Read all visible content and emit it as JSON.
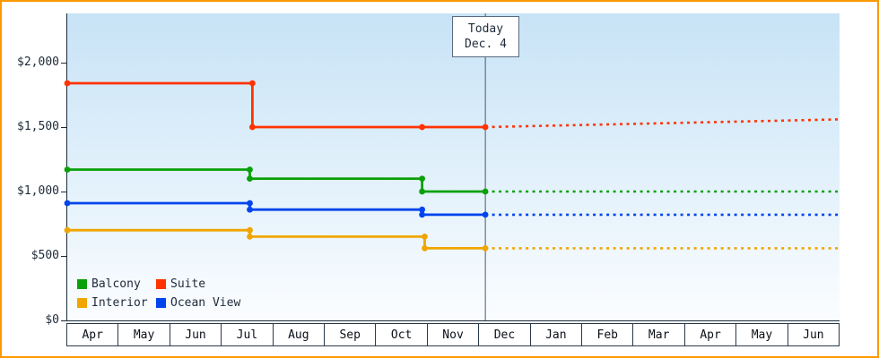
{
  "chart_data": {
    "type": "line",
    "title": "",
    "x_axis": {
      "labels": [
        "Apr",
        "May",
        "Jun",
        "Jul",
        "Aug",
        "Sep",
        "Oct",
        "Nov",
        "Dec",
        "Jan",
        "Feb",
        "Mar",
        "Apr",
        "May",
        "Jun"
      ]
    },
    "y_axis": {
      "min": 0,
      "max_visible": 2380,
      "tick_step": 500,
      "ticks": [
        {
          "value": 2000,
          "label": "$2,000"
        },
        {
          "value": 1500,
          "label": "$1,500"
        },
        {
          "value": 1000,
          "label": "$1,000"
        },
        {
          "value": 500,
          "label": "$500"
        },
        {
          "value": 0,
          "label": "$0"
        }
      ]
    },
    "today_marker": {
      "line1": "Today",
      "line2": "Dec. 4",
      "x": 8.13
    },
    "series": [
      {
        "name": "Suite",
        "color": "#ff3300",
        "history": [
          [
            0,
            1840
          ],
          [
            3.6,
            1840
          ],
          [
            3.6,
            1500
          ],
          [
            6.9,
            1500
          ],
          [
            8.13,
            1500
          ]
        ],
        "forecast": [
          [
            8.13,
            1500
          ],
          [
            15,
            1560
          ]
        ]
      },
      {
        "name": "Balcony",
        "color": "#0aa00a",
        "history": [
          [
            0,
            1170
          ],
          [
            3.55,
            1170
          ],
          [
            3.55,
            1100
          ],
          [
            6.9,
            1100
          ],
          [
            6.9,
            1000
          ],
          [
            8.13,
            1000
          ]
        ],
        "forecast": [
          [
            8.13,
            1000
          ],
          [
            15,
            1000
          ]
        ]
      },
      {
        "name": "Ocean View",
        "color": "#0044ee",
        "history": [
          [
            0,
            910
          ],
          [
            3.55,
            910
          ],
          [
            3.55,
            860
          ],
          [
            6.9,
            860
          ],
          [
            6.9,
            820
          ],
          [
            8.13,
            820
          ]
        ],
        "forecast": [
          [
            8.13,
            820
          ],
          [
            15,
            820
          ]
        ]
      },
      {
        "name": "Interior",
        "color": "#f0a500",
        "history": [
          [
            0,
            700
          ],
          [
            3.55,
            700
          ],
          [
            3.55,
            650
          ],
          [
            6.95,
            650
          ],
          [
            6.95,
            560
          ],
          [
            8.13,
            560
          ]
        ],
        "forecast": [
          [
            8.13,
            560
          ],
          [
            15,
            560
          ]
        ]
      }
    ],
    "legend": [
      {
        "label": "Balcony",
        "color": "#0aa00a"
      },
      {
        "label": "Suite",
        "color": "#ff3300"
      },
      {
        "label": "Interior",
        "color": "#f0a500"
      },
      {
        "label": "Ocean View",
        "color": "#0044ee"
      }
    ]
  },
  "frame": {
    "border_color": "#ff9900"
  }
}
